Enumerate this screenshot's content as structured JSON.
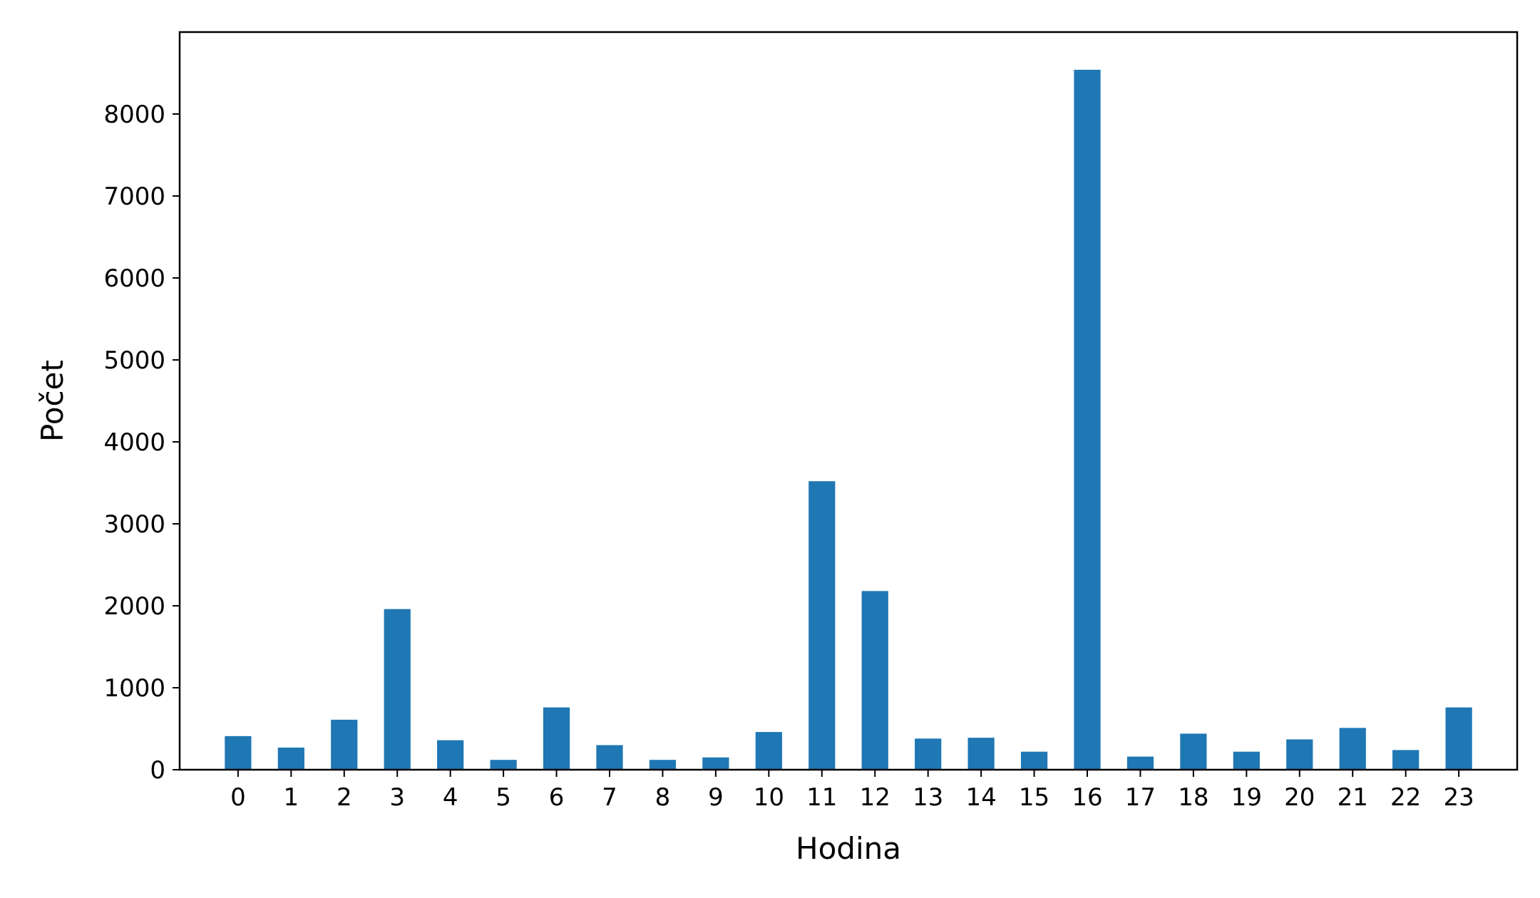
{
  "chart_data": {
    "type": "bar",
    "xlabel": "Hodina",
    "ylabel": "Počet",
    "categories": [
      "0",
      "1",
      "2",
      "3",
      "4",
      "5",
      "6",
      "7",
      "8",
      "9",
      "10",
      "11",
      "12",
      "13",
      "14",
      "15",
      "16",
      "17",
      "18",
      "19",
      "20",
      "21",
      "22",
      "23"
    ],
    "values": [
      410,
      270,
      610,
      1960,
      360,
      120,
      760,
      300,
      120,
      150,
      460,
      3520,
      2180,
      380,
      390,
      220,
      8540,
      160,
      440,
      220,
      370,
      510,
      240,
      760
    ],
    "ylim": [
      0,
      9000
    ],
    "yticks": [
      0,
      1000,
      2000,
      3000,
      4000,
      5000,
      6000,
      7000,
      8000
    ],
    "bar_color": "#1f77b4",
    "grid": false,
    "legend": "none"
  }
}
